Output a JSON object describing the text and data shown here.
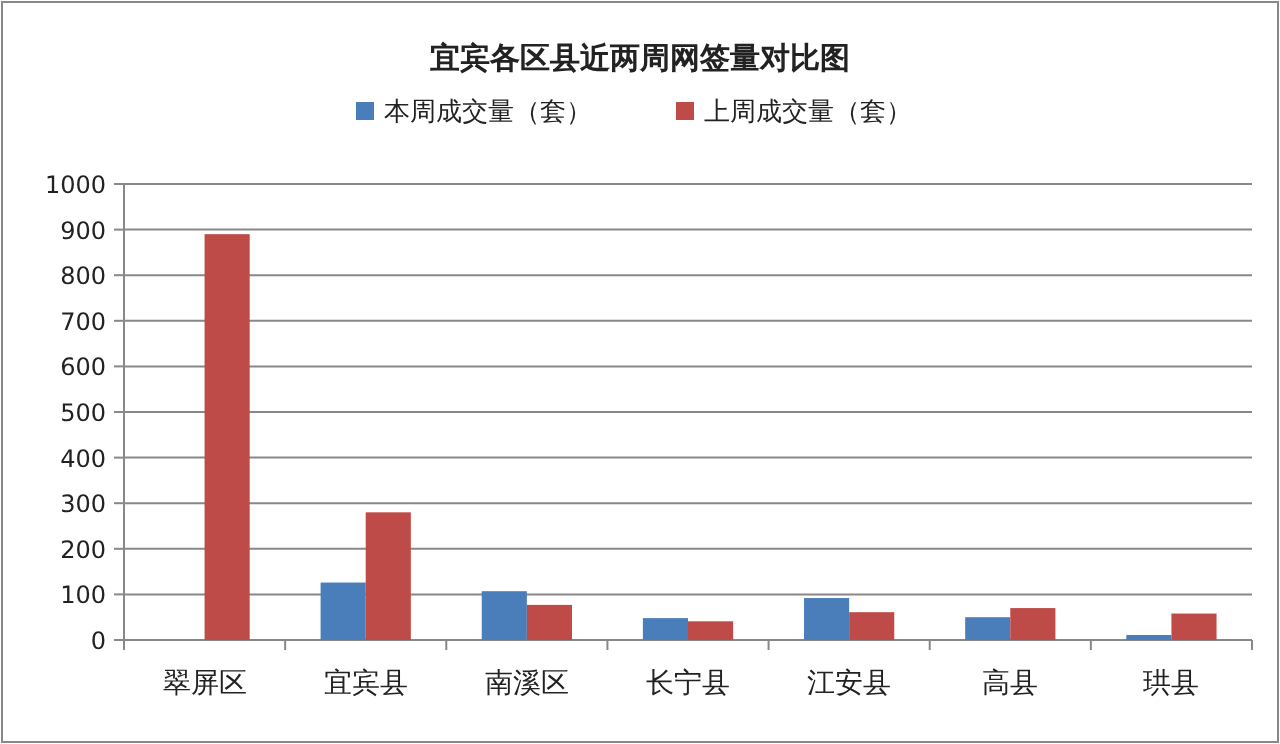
{
  "chart_data": {
    "type": "bar",
    "title": "宜宾各区县近两周网签量对比图",
    "categories": [
      "翠屏区",
      "宜宾县",
      "南溪区",
      "长宁县",
      "江安县",
      "高县",
      "珙县"
    ],
    "series": [
      {
        "name": "本周成交量（套）",
        "color": "#4a7ebb",
        "values": [
          0,
          126,
          107,
          48,
          92,
          50,
          11
        ]
      },
      {
        "name": "上周成交量（套）",
        "color": "#be4b48",
        "values": [
          890,
          280,
          77,
          41,
          61,
          70,
          58
        ]
      }
    ],
    "ylim": [
      0,
      1000
    ],
    "yticks": [
      0,
      100,
      200,
      300,
      400,
      500,
      600,
      700,
      800,
      900,
      1000
    ],
    "grid": "y",
    "legend": "top"
  }
}
